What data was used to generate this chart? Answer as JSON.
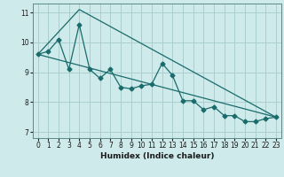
{
  "title": "",
  "xlabel": "Humidex (Indice chaleur)",
  "background_color": "#ceeaea",
  "grid_color": "#aacece",
  "line_color": "#1a6b6b",
  "xlim": [
    -0.5,
    23.5
  ],
  "ylim": [
    6.8,
    11.3
  ],
  "yticks": [
    7,
    8,
    9,
    10,
    11
  ],
  "xticks": [
    0,
    1,
    2,
    3,
    4,
    5,
    6,
    7,
    8,
    9,
    10,
    11,
    12,
    13,
    14,
    15,
    16,
    17,
    18,
    19,
    20,
    21,
    22,
    23
  ],
  "series1_x": [
    0,
    1,
    2,
    3,
    4,
    5,
    6,
    7,
    8,
    9,
    10,
    11,
    12,
    13,
    14,
    15,
    16,
    17,
    18,
    19,
    20,
    21,
    22,
    23
  ],
  "series1_y": [
    9.6,
    9.7,
    10.1,
    9.1,
    10.6,
    9.1,
    8.8,
    9.1,
    8.5,
    8.45,
    8.55,
    8.6,
    9.3,
    8.9,
    8.05,
    8.05,
    7.75,
    7.85,
    7.55,
    7.55,
    7.35,
    7.35,
    7.45,
    7.5
  ],
  "series2_x": [
    0,
    4,
    23
  ],
  "series2_y": [
    9.6,
    11.1,
    7.5
  ],
  "series3_x": [
    0,
    23
  ],
  "series3_y": [
    9.6,
    7.5
  ]
}
